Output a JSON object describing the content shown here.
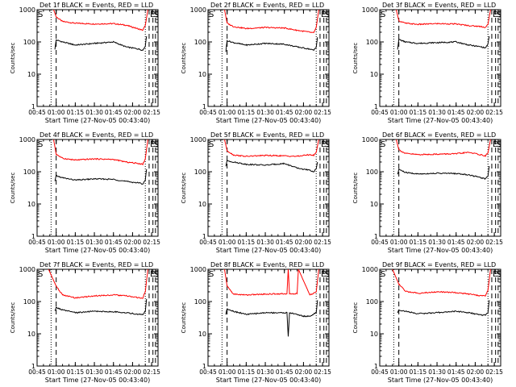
{
  "chart_data": [
    {
      "type": "line",
      "title": "Det 1f BLACK = Events, RED = LLD",
      "xlabel": "Start Time (27-Nov-05 00:43:40)",
      "ylabel": "Counts/sec",
      "y_scale": "log",
      "ylim": [
        1,
        1000
      ],
      "xlim": [
        "00:45",
        "02:20"
      ],
      "x_tick_labels": [
        "00:45",
        "01:00",
        "01:15",
        "01:30",
        "01:45",
        "02:00",
        "02:15"
      ],
      "y_tick_labels": [
        "1",
        "10",
        "100",
        "1000"
      ],
      "markers": [
        {
          "label": "S",
          "x": "00:45"
        },
        {
          "label": "E",
          "x": "02:13"
        },
        {
          "label": "S",
          "x": "02:16"
        }
      ],
      "series": [
        {
          "color": "#ff0000",
          "x": [
            "00:58",
            "01:00",
            "01:05",
            "01:15",
            "01:30",
            "01:45",
            "01:55",
            "02:05",
            "02:08",
            "02:10",
            "02:12"
          ],
          "y": [
            1000,
            600,
            430,
            380,
            360,
            370,
            330,
            250,
            230,
            320,
            1000
          ]
        },
        {
          "color": "#000000",
          "x": [
            "00:59",
            "01:00",
            "01:05",
            "01:15",
            "01:30",
            "01:45",
            "01:55",
            "02:05",
            "02:08",
            "02:10",
            "02:11"
          ],
          "y": [
            60,
            115,
            100,
            80,
            90,
            100,
            70,
            60,
            55,
            75,
            150
          ]
        }
      ]
    },
    {
      "type": "line",
      "title": "Det 2f BLACK = Events, RED = LLD",
      "xlabel": "Start Time (27-Nov-05 00:43:40)",
      "ylabel": "Counts/sec",
      "y_scale": "log",
      "ylim": [
        1,
        1000
      ],
      "xlim": [
        "00:45",
        "02:20"
      ],
      "x_tick_labels": [
        "00:45",
        "01:00",
        "01:15",
        "01:30",
        "01:45",
        "02:00",
        "02:15"
      ],
      "y_tick_labels": [
        "1",
        "10",
        "100",
        "1000"
      ],
      "markers": [
        {
          "label": "S",
          "x": "00:45"
        },
        {
          "label": "E",
          "x": "02:13"
        },
        {
          "label": "S",
          "x": "02:16"
        }
      ],
      "series": [
        {
          "color": "#ff0000",
          "x": [
            "00:58",
            "01:00",
            "01:05",
            "01:15",
            "01:30",
            "01:45",
            "01:55",
            "02:05",
            "02:08",
            "02:10",
            "02:12"
          ],
          "y": [
            1000,
            380,
            300,
            260,
            280,
            270,
            230,
            200,
            190,
            280,
            1000
          ]
        },
        {
          "color": "#000000",
          "x": [
            "00:59",
            "01:00",
            "01:05",
            "01:15",
            "01:30",
            "01:45",
            "01:55",
            "02:05",
            "02:08",
            "02:10",
            "02:11"
          ],
          "y": [
            50,
            110,
            95,
            80,
            90,
            85,
            70,
            60,
            55,
            70,
            140
          ]
        }
      ]
    },
    {
      "type": "line",
      "title": "Det 3f BLACK = Events, RED = LLD",
      "xlabel": "Start Time (27-Nov-05 00:43:40)",
      "ylabel": "Counts/sec",
      "y_scale": "log",
      "ylim": [
        1,
        1000
      ],
      "xlim": [
        "00:45",
        "02:20"
      ],
      "x_tick_labels": [
        "00:45",
        "01:00",
        "01:15",
        "01:30",
        "01:45",
        "02:00",
        "02:15"
      ],
      "y_tick_labels": [
        "1",
        "10",
        "100",
        "1000"
      ],
      "markers": [
        {
          "label": "S",
          "x": "00:45"
        },
        {
          "label": "E",
          "x": "02:13"
        },
        {
          "label": "S",
          "x": "02:16"
        }
      ],
      "series": [
        {
          "color": "#ff0000",
          "x": [
            "00:58",
            "01:00",
            "01:05",
            "01:15",
            "01:30",
            "01:45",
            "01:55",
            "02:05",
            "02:08",
            "02:10",
            "02:12"
          ],
          "y": [
            1000,
            450,
            380,
            350,
            370,
            360,
            320,
            300,
            280,
            350,
            1000
          ]
        },
        {
          "color": "#000000",
          "x": [
            "00:59",
            "01:00",
            "01:05",
            "01:15",
            "01:30",
            "01:45",
            "01:55",
            "02:05",
            "02:08",
            "02:10",
            "02:11"
          ],
          "y": [
            60,
            120,
            100,
            90,
            95,
            100,
            80,
            70,
            65,
            85,
            150
          ]
        }
      ]
    },
    {
      "type": "line",
      "title": "Det 4f BLACK = Events, RED = LLD",
      "xlabel": "Start Time (27-Nov-05 00:43:40)",
      "ylabel": "Counts/sec",
      "y_scale": "log",
      "ylim": [
        1,
        1000
      ],
      "xlim": [
        "00:45",
        "02:20"
      ],
      "x_tick_labels": [
        "00:45",
        "01:00",
        "01:15",
        "01:30",
        "01:45",
        "02:00",
        "02:15"
      ],
      "y_tick_labels": [
        "1",
        "10",
        "100",
        "1000"
      ],
      "markers": [
        {
          "label": "S",
          "x": "00:45"
        },
        {
          "label": "E",
          "x": "02:13"
        },
        {
          "label": "S",
          "x": "02:16"
        }
      ],
      "series": [
        {
          "color": "#ff0000",
          "x": [
            "00:58",
            "01:00",
            "01:05",
            "01:15",
            "01:30",
            "01:45",
            "01:55",
            "02:05",
            "02:08",
            "02:10",
            "02:12"
          ],
          "y": [
            1000,
            350,
            260,
            230,
            250,
            240,
            200,
            180,
            170,
            250,
            1000
          ]
        },
        {
          "color": "#000000",
          "x": [
            "00:59",
            "01:00",
            "01:05",
            "01:15",
            "01:30",
            "01:45",
            "01:55",
            "02:05",
            "02:08",
            "02:10",
            "02:11"
          ],
          "y": [
            50,
            75,
            65,
            55,
            60,
            58,
            50,
            45,
            42,
            55,
            120
          ]
        }
      ]
    },
    {
      "type": "line",
      "title": "Det 5f BLACK = Events, RED = LLD",
      "xlabel": "Start Time (27-Nov-05 00:43:40)",
      "ylabel": "Counts/sec",
      "y_scale": "log",
      "ylim": [
        1,
        1000
      ],
      "xlim": [
        "00:45",
        "02:20"
      ],
      "x_tick_labels": [
        "00:45",
        "01:00",
        "01:15",
        "01:30",
        "01:45",
        "02:00",
        "02:15"
      ],
      "y_tick_labels": [
        "1",
        "10",
        "100",
        "1000"
      ],
      "markers": [
        {
          "label": "S",
          "x": "00:45"
        },
        {
          "label": "E",
          "x": "02:13"
        },
        {
          "label": "S",
          "x": "02:16"
        }
      ],
      "series": [
        {
          "color": "#ff0000",
          "x": [
            "00:58",
            "01:00",
            "01:05",
            "01:15",
            "01:30",
            "01:45",
            "01:55",
            "02:05",
            "02:08",
            "02:10",
            "02:12"
          ],
          "y": [
            1000,
            450,
            330,
            300,
            320,
            310,
            300,
            340,
            320,
            400,
            1000
          ]
        },
        {
          "color": "#000000",
          "x": [
            "00:59",
            "01:00",
            "01:05",
            "01:15",
            "01:30",
            "01:45",
            "01:55",
            "02:05",
            "02:08",
            "02:10",
            "02:11"
          ],
          "y": [
            150,
            220,
            200,
            170,
            160,
            180,
            130,
            110,
            100,
            120,
            200
          ]
        }
      ]
    },
    {
      "type": "line",
      "title": "Det 6f BLACK = Events, RED = LLD",
      "xlabel": "Start Time (27-Nov-05 00:43:40)",
      "ylabel": "Counts/sec",
      "y_scale": "log",
      "ylim": [
        1,
        1000
      ],
      "xlim": [
        "00:45",
        "02:20"
      ],
      "x_tick_labels": [
        "00:45",
        "01:00",
        "01:15",
        "01:30",
        "01:45",
        "02:00",
        "02:15"
      ],
      "y_tick_labels": [
        "1",
        "10",
        "100",
        "1000"
      ],
      "markers": [
        {
          "label": "S",
          "x": "00:45"
        },
        {
          "label": "E",
          "x": "02:13"
        },
        {
          "label": "S",
          "x": "02:16"
        }
      ],
      "series": [
        {
          "color": "#ff0000",
          "x": [
            "00:58",
            "01:00",
            "01:05",
            "01:15",
            "01:30",
            "01:45",
            "01:55",
            "02:05",
            "02:08",
            "02:10",
            "02:12"
          ],
          "y": [
            1000,
            480,
            370,
            340,
            350,
            360,
            400,
            330,
            310,
            380,
            1000
          ]
        },
        {
          "color": "#000000",
          "x": [
            "00:59",
            "01:00",
            "01:05",
            "01:15",
            "01:30",
            "01:45",
            "01:55",
            "02:05",
            "02:08",
            "02:10",
            "02:11"
          ],
          "y": [
            80,
            120,
            95,
            85,
            90,
            88,
            80,
            65,
            60,
            75,
            150
          ]
        }
      ]
    },
    {
      "type": "line",
      "title": "Det 7f BLACK = Events, RED = LLD",
      "xlabel": "Start Time (27-Nov-05 00:43:40)",
      "ylabel": "Counts/sec",
      "y_scale": "log",
      "ylim": [
        1,
        1000
      ],
      "xlim": [
        "00:45",
        "02:20"
      ],
      "x_tick_labels": [
        "00:45",
        "01:00",
        "01:15",
        "01:30",
        "01:45",
        "02:00",
        "02:15"
      ],
      "y_tick_labels": [
        "1",
        "10",
        "100",
        "1000"
      ],
      "markers": [
        {
          "label": "S",
          "x": "00:45"
        },
        {
          "label": "E",
          "x": "02:13"
        },
        {
          "label": "S",
          "x": "02:16"
        }
      ],
      "series": [
        {
          "color": "#ff0000",
          "x": [
            "00:54",
            "01:00",
            "01:05",
            "01:15",
            "01:30",
            "01:45",
            "01:55",
            "02:05",
            "02:08",
            "02:10",
            "02:12"
          ],
          "y": [
            1000,
            300,
            160,
            130,
            150,
            160,
            150,
            130,
            130,
            200,
            1000
          ]
        },
        {
          "color": "#000000",
          "x": [
            "00:59",
            "01:00",
            "01:05",
            "01:15",
            "01:30",
            "01:45",
            "01:55",
            "02:05",
            "02:08",
            "02:10",
            "02:11"
          ],
          "y": [
            50,
            65,
            55,
            45,
            50,
            48,
            45,
            40,
            40,
            50,
            120
          ]
        }
      ]
    },
    {
      "type": "line",
      "title": "Det 8f BLACK = Events, RED = LLD",
      "xlabel": "Start Time (27-Nov-05 00:43:40)",
      "ylabel": "Counts/sec",
      "y_scale": "log",
      "ylim": [
        1,
        1000
      ],
      "xlim": [
        "00:45",
        "02:20"
      ],
      "x_tick_labels": [
        "00:45",
        "01:00",
        "01:15",
        "01:30",
        "01:45",
        "02:00",
        "02:15"
      ],
      "y_tick_labels": [
        "1",
        "10",
        "100",
        "1000"
      ],
      "markers": [
        {
          "label": "S",
          "x": "00:45"
        },
        {
          "label": "E",
          "x": "02:13"
        },
        {
          "label": "S",
          "x": "02:16"
        }
      ],
      "series": [
        {
          "color": "#ff0000",
          "x": [
            "00:58",
            "01:00",
            "01:05",
            "01:15",
            "01:30",
            "01:45",
            "01:47",
            "01:48",
            "01:49",
            "01:55",
            "01:56",
            "02:05",
            "02:10",
            "02:12"
          ],
          "y": [
            1000,
            300,
            170,
            160,
            170,
            175,
            175,
            1000,
            175,
            175,
            1000,
            160,
            200,
            1000
          ]
        },
        {
          "color": "#000000",
          "x": [
            "00:59",
            "01:00",
            "01:05",
            "01:15",
            "01:30",
            "01:45",
            "01:47",
            "01:48",
            "01:49",
            "01:55",
            "02:00",
            "02:05",
            "02:10",
            "02:11"
          ],
          "y": [
            40,
            60,
            50,
            40,
            45,
            45,
            45,
            8,
            45,
            40,
            35,
            35,
            45,
            110
          ]
        }
      ]
    },
    {
      "type": "line",
      "title": "Det 9f BLACK = Events, RED = LLD",
      "xlabel": "Start Time (27-Nov-05 00:43:40)",
      "ylabel": "Counts/sec",
      "y_scale": "log",
      "ylim": [
        1,
        1000
      ],
      "xlim": [
        "00:45",
        "02:20"
      ],
      "x_tick_labels": [
        "00:45",
        "01:00",
        "01:15",
        "01:30",
        "01:45",
        "02:00",
        "02:15"
      ],
      "y_tick_labels": [
        "1",
        "10",
        "100",
        "1000"
      ],
      "markers": [
        {
          "label": "S",
          "x": "00:45"
        },
        {
          "label": "E",
          "x": "02:13"
        },
        {
          "label": "S",
          "x": "02:16"
        }
      ],
      "series": [
        {
          "color": "#ff0000",
          "x": [
            "00:55",
            "01:00",
            "01:05",
            "01:15",
            "01:30",
            "01:45",
            "01:55",
            "02:05",
            "02:08",
            "02:10",
            "02:12"
          ],
          "y": [
            1000,
            350,
            210,
            180,
            200,
            190,
            170,
            150,
            150,
            220,
            1000
          ]
        },
        {
          "color": "#000000",
          "x": [
            "00:59",
            "01:00",
            "01:05",
            "01:15",
            "01:30",
            "01:45",
            "01:55",
            "02:05",
            "02:08",
            "02:10",
            "02:11"
          ],
          "y": [
            45,
            55,
            50,
            42,
            45,
            50,
            45,
            38,
            38,
            45,
            110
          ]
        }
      ]
    }
  ]
}
